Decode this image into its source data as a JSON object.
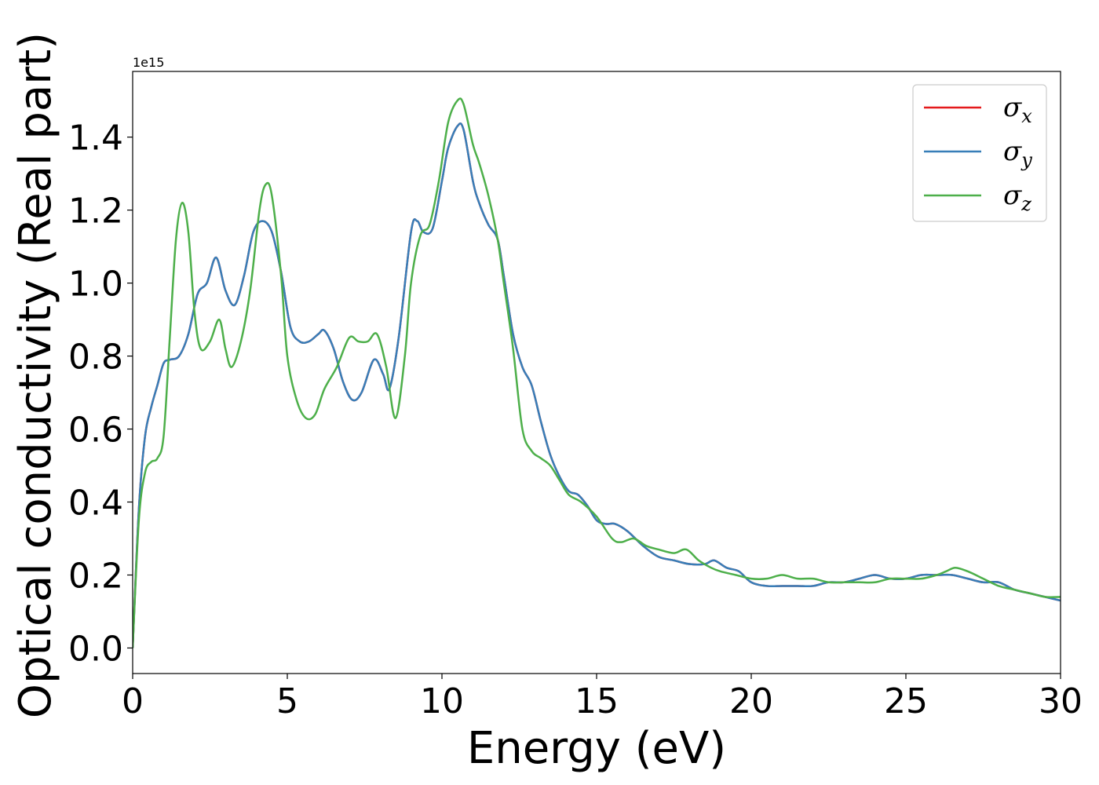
{
  "chart_data": {
    "type": "line",
    "title": "",
    "xlabel": "Energy (eV)",
    "ylabel": "Optical conductivity (Real part)",
    "y_offset_label": "1e15",
    "xlim": [
      0,
      30
    ],
    "ylim": [
      -0.07,
      1.58
    ],
    "x_ticks": [
      0,
      5,
      10,
      15,
      20,
      25,
      30
    ],
    "x_tick_labels": [
      "0",
      "5",
      "10",
      "15",
      "20",
      "25",
      "30"
    ],
    "y_ticks": [
      0.0,
      0.2,
      0.4,
      0.6,
      0.8,
      1.0,
      1.2,
      1.4
    ],
    "y_tick_labels": [
      "0.0",
      "0.2",
      "0.4",
      "0.6",
      "0.8",
      "1.0",
      "1.2",
      "1.4"
    ],
    "grid": false,
    "legend_position": "top-right",
    "series": [
      {
        "name": "σx",
        "symbol": "σ",
        "subscript": "x",
        "color": "#e41a1c",
        "x": [
          0,
          0.2,
          0.4,
          0.6,
          0.8,
          1.0,
          1.2,
          1.5,
          1.8,
          2.1,
          2.4,
          2.7,
          3.0,
          3.3,
          3.6,
          3.9,
          4.2,
          4.5,
          4.8,
          5.1,
          5.4,
          5.7,
          6.0,
          6.2,
          6.5,
          6.8,
          7.1,
          7.4,
          7.8,
          8.1,
          8.3,
          8.6,
          9.0,
          9.2,
          9.4,
          9.7,
          10.0,
          10.2,
          10.5,
          10.7,
          11.0,
          11.2,
          11.5,
          11.8,
          12.0,
          12.3,
          12.6,
          12.9,
          13.2,
          13.5,
          13.8,
          14.1,
          14.4,
          14.7,
          15.0,
          15.3,
          15.6,
          16.0,
          16.5,
          17.0,
          17.5,
          18.0,
          18.5,
          18.8,
          19.2,
          19.6,
          20.0,
          20.5,
          21.0,
          21.5,
          22.0,
          22.5,
          23.0,
          23.5,
          24.0,
          24.5,
          25.0,
          25.5,
          26.0,
          26.5,
          27.0,
          27.5,
          28.0,
          28.5,
          29.0,
          29.5,
          30.0
        ],
        "values": [
          0.0,
          0.38,
          0.58,
          0.66,
          0.72,
          0.78,
          0.79,
          0.8,
          0.86,
          0.97,
          1.0,
          1.07,
          0.98,
          0.94,
          1.02,
          1.14,
          1.17,
          1.14,
          1.03,
          0.88,
          0.84,
          0.84,
          0.86,
          0.87,
          0.82,
          0.73,
          0.68,
          0.7,
          0.79,
          0.75,
          0.71,
          0.85,
          1.14,
          1.17,
          1.14,
          1.15,
          1.28,
          1.37,
          1.43,
          1.42,
          1.28,
          1.22,
          1.16,
          1.12,
          1.02,
          0.86,
          0.77,
          0.72,
          0.62,
          0.53,
          0.47,
          0.43,
          0.42,
          0.39,
          0.35,
          0.34,
          0.34,
          0.32,
          0.28,
          0.25,
          0.24,
          0.23,
          0.23,
          0.24,
          0.22,
          0.21,
          0.18,
          0.17,
          0.17,
          0.17,
          0.17,
          0.18,
          0.18,
          0.19,
          0.2,
          0.19,
          0.19,
          0.2,
          0.2,
          0.2,
          0.19,
          0.18,
          0.18,
          0.16,
          0.15,
          0.14,
          0.13
        ]
      },
      {
        "name": "σy",
        "symbol": "σ",
        "subscript": "y",
        "color": "#377eb8",
        "x": [
          0,
          0.2,
          0.4,
          0.6,
          0.8,
          1.0,
          1.2,
          1.5,
          1.8,
          2.1,
          2.4,
          2.7,
          3.0,
          3.3,
          3.6,
          3.9,
          4.2,
          4.5,
          4.8,
          5.1,
          5.4,
          5.7,
          6.0,
          6.2,
          6.5,
          6.8,
          7.1,
          7.4,
          7.8,
          8.1,
          8.3,
          8.6,
          9.0,
          9.2,
          9.4,
          9.7,
          10.0,
          10.2,
          10.5,
          10.7,
          11.0,
          11.2,
          11.5,
          11.8,
          12.0,
          12.3,
          12.6,
          12.9,
          13.2,
          13.5,
          13.8,
          14.1,
          14.4,
          14.7,
          15.0,
          15.3,
          15.6,
          16.0,
          16.5,
          17.0,
          17.5,
          18.0,
          18.5,
          18.8,
          19.2,
          19.6,
          20.0,
          20.5,
          21.0,
          21.5,
          22.0,
          22.5,
          23.0,
          23.5,
          24.0,
          24.5,
          25.0,
          25.5,
          26.0,
          26.5,
          27.0,
          27.5,
          28.0,
          28.5,
          29.0,
          29.5,
          30.0
        ],
        "values": [
          0.0,
          0.38,
          0.58,
          0.66,
          0.72,
          0.78,
          0.79,
          0.8,
          0.86,
          0.97,
          1.0,
          1.07,
          0.98,
          0.94,
          1.02,
          1.14,
          1.17,
          1.14,
          1.03,
          0.88,
          0.84,
          0.84,
          0.86,
          0.87,
          0.82,
          0.73,
          0.68,
          0.7,
          0.79,
          0.75,
          0.71,
          0.85,
          1.14,
          1.17,
          1.14,
          1.15,
          1.28,
          1.37,
          1.43,
          1.42,
          1.28,
          1.22,
          1.16,
          1.12,
          1.02,
          0.86,
          0.77,
          0.72,
          0.62,
          0.53,
          0.47,
          0.43,
          0.42,
          0.39,
          0.35,
          0.34,
          0.34,
          0.32,
          0.28,
          0.25,
          0.24,
          0.23,
          0.23,
          0.24,
          0.22,
          0.21,
          0.18,
          0.17,
          0.17,
          0.17,
          0.17,
          0.18,
          0.18,
          0.19,
          0.2,
          0.19,
          0.19,
          0.2,
          0.2,
          0.2,
          0.19,
          0.18,
          0.18,
          0.16,
          0.15,
          0.14,
          0.13
        ]
      },
      {
        "name": "σz",
        "symbol": "σ",
        "subscript": "z",
        "color": "#4daf4a",
        "x": [
          0,
          0.2,
          0.4,
          0.6,
          0.8,
          1.0,
          1.2,
          1.4,
          1.6,
          1.8,
          2.0,
          2.2,
          2.5,
          2.8,
          3.0,
          3.2,
          3.5,
          3.8,
          4.1,
          4.3,
          4.5,
          4.8,
          5.0,
          5.3,
          5.6,
          5.9,
          6.2,
          6.6,
          7.0,
          7.3,
          7.6,
          7.9,
          8.2,
          8.5,
          8.8,
          9.0,
          9.3,
          9.6,
          9.9,
          10.2,
          10.5,
          10.7,
          11.0,
          11.2,
          11.5,
          11.8,
          12.0,
          12.3,
          12.6,
          12.9,
          13.2,
          13.5,
          13.8,
          14.1,
          14.5,
          15.0,
          15.5,
          15.8,
          16.2,
          16.6,
          17.0,
          17.5,
          17.9,
          18.3,
          18.7,
          19.0,
          19.5,
          20.0,
          20.5,
          21.0,
          21.5,
          22.0,
          22.5,
          23.0,
          23.5,
          24.0,
          24.5,
          25.0,
          25.5,
          26.0,
          26.3,
          26.6,
          27.0,
          27.5,
          28.0,
          28.5,
          29.0,
          29.5,
          30.0
        ],
        "values": [
          0.0,
          0.35,
          0.48,
          0.51,
          0.52,
          0.58,
          0.85,
          1.12,
          1.22,
          1.14,
          0.92,
          0.82,
          0.84,
          0.9,
          0.82,
          0.77,
          0.84,
          0.98,
          1.2,
          1.27,
          1.24,
          1.02,
          0.8,
          0.68,
          0.63,
          0.64,
          0.71,
          0.77,
          0.85,
          0.84,
          0.84,
          0.86,
          0.77,
          0.63,
          0.8,
          1.0,
          1.13,
          1.16,
          1.28,
          1.44,
          1.5,
          1.49,
          1.38,
          1.33,
          1.24,
          1.12,
          1.0,
          0.82,
          0.6,
          0.54,
          0.52,
          0.5,
          0.46,
          0.42,
          0.4,
          0.36,
          0.3,
          0.29,
          0.3,
          0.28,
          0.27,
          0.26,
          0.27,
          0.24,
          0.22,
          0.21,
          0.2,
          0.19,
          0.19,
          0.2,
          0.19,
          0.19,
          0.18,
          0.18,
          0.18,
          0.18,
          0.19,
          0.19,
          0.19,
          0.2,
          0.21,
          0.22,
          0.21,
          0.19,
          0.17,
          0.16,
          0.15,
          0.14,
          0.14
        ]
      }
    ]
  }
}
